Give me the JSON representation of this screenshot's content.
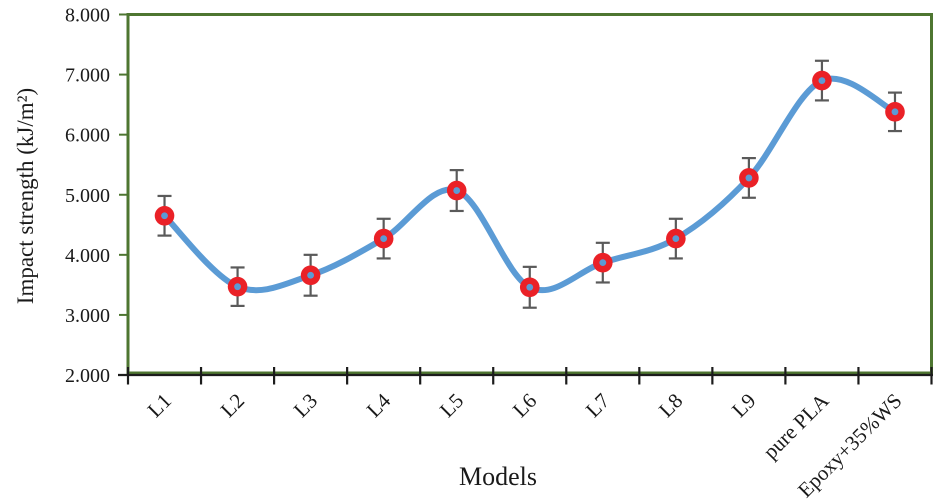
{
  "chart_data": {
    "type": "line",
    "title": "",
    "xlabel": "Models",
    "ylabel": "Impact strength (kJ/m²)",
    "categories": [
      "L1",
      "L2",
      "L3",
      "L4",
      "L5",
      "L6",
      "L7",
      "L8",
      "L9",
      "pure PLA",
      "Epoxy+35%WS"
    ],
    "series": [
      {
        "name": "Impact strength",
        "values": [
          4.65,
          3.47,
          3.66,
          4.27,
          5.07,
          3.46,
          3.87,
          4.27,
          5.28,
          6.9,
          6.38
        ],
        "errors": [
          0.33,
          0.32,
          0.34,
          0.33,
          0.34,
          0.34,
          0.33,
          0.33,
          0.33,
          0.33,
          0.32
        ]
      }
    ],
    "ylim": [
      2.0,
      8.0
    ],
    "ytick_values": [
      2,
      3,
      4,
      5,
      6,
      7,
      8
    ],
    "ytick_labels": [
      "2.000",
      "3.000",
      "4.000",
      "5.000",
      "6.000",
      "7.000",
      "8.000"
    ],
    "grid": false,
    "legend": "none",
    "smooth": true,
    "marker": "circle-with-dot"
  },
  "colors": {
    "line": "#5B9BD5",
    "marker_fill": "#EA2127",
    "marker_dot": "#5B9BD5",
    "error_bar": "#5A5A5A",
    "plot_border": "#4E7631",
    "axis_line": "#1C1C1C",
    "text": "#1A1A1A",
    "background": "#FFFFFF"
  }
}
